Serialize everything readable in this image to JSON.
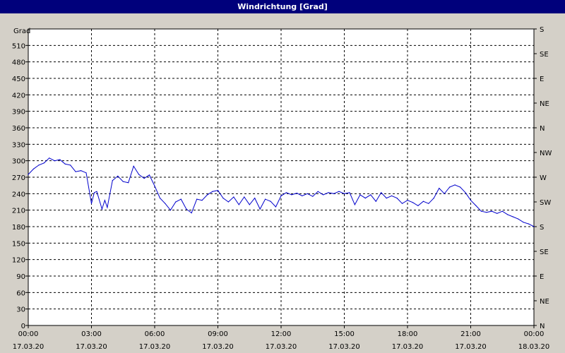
{
  "window": {
    "title": "Windrichtung [Grad]"
  },
  "colors": {
    "titlebar": "#00007b",
    "line": "#0000cc",
    "background": "#d4d0c8",
    "plot": "#ffffff"
  },
  "chart_data": {
    "type": "line",
    "title": "Windrichtung [Grad]",
    "ylabel": "Grad",
    "xlabel": "",
    "grid": true,
    "ylim": [
      0,
      540
    ],
    "yticks": [
      0,
      30,
      60,
      90,
      120,
      150,
      180,
      210,
      240,
      270,
      300,
      330,
      360,
      390,
      420,
      450,
      480,
      510
    ],
    "y2ticks": [
      "N",
      "NE",
      "E",
      "SE",
      "S",
      "SW",
      "W",
      "NW",
      "N",
      "NE",
      "E",
      "SE",
      "S"
    ],
    "xlim": [
      "17.03.20 00:00",
      "18.03.20 00:00"
    ],
    "xticks": [
      {
        "time": "00:00",
        "date": "17.03.20"
      },
      {
        "time": "03:00",
        "date": "17.03.20"
      },
      {
        "time": "06:00",
        "date": "17.03.20"
      },
      {
        "time": "09:00",
        "date": "17.03.20"
      },
      {
        "time": "12:00",
        "date": "17.03.20"
      },
      {
        "time": "15:00",
        "date": "17.03.20"
      },
      {
        "time": "18:00",
        "date": "17.03.20"
      },
      {
        "time": "21:00",
        "date": "17.03.20"
      },
      {
        "time": "00:00",
        "date": "18.03.20"
      }
    ],
    "series": [
      {
        "x": [
          "00:00",
          "00:15",
          "00:30",
          "00:45",
          "01:00",
          "01:15",
          "01:30",
          "01:45",
          "02:00",
          "02:15",
          "02:30",
          "02:45",
          "03:00",
          "03:08",
          "03:15",
          "03:30",
          "03:38",
          "03:45",
          "04:00",
          "04:15",
          "04:30",
          "04:45",
          "05:00",
          "05:15",
          "05:30",
          "05:45",
          "06:00",
          "06:15",
          "06:30",
          "06:45",
          "07:00",
          "07:15",
          "07:30",
          "07:45",
          "08:00",
          "08:15",
          "08:30",
          "08:45",
          "09:00",
          "09:15",
          "09:30",
          "09:45",
          "10:00",
          "10:15",
          "10:30",
          "10:45",
          "11:00",
          "11:15",
          "11:30",
          "11:45",
          "12:00",
          "12:15",
          "12:30",
          "12:45",
          "13:00",
          "13:15",
          "13:30",
          "13:45",
          "14:00",
          "14:15",
          "14:30",
          "14:45",
          "15:00",
          "15:15",
          "15:30",
          "15:45",
          "16:00",
          "16:15",
          "16:30",
          "16:45",
          "17:00",
          "17:15",
          "17:30",
          "17:45",
          "18:00",
          "18:15",
          "18:30",
          "18:45",
          "19:00",
          "19:15",
          "19:30",
          "19:45",
          "20:00",
          "20:15",
          "20:30",
          "20:45",
          "21:00",
          "21:15",
          "21:30",
          "21:45",
          "22:00",
          "22:15",
          "22:30",
          "22:45",
          "23:00",
          "23:15",
          "23:30",
          "23:45",
          "00:00"
        ],
        "y": [
          275,
          285,
          292,
          296,
          305,
          300,
          302,
          294,
          292,
          280,
          282,
          278,
          222,
          242,
          244,
          212,
          228,
          215,
          264,
          272,
          262,
          260,
          290,
          275,
          268,
          274,
          254,
          232,
          222,
          210,
          225,
          230,
          212,
          205,
          230,
          228,
          238,
          244,
          246,
          232,
          225,
          234,
          220,
          234,
          220,
          232,
          212,
          230,
          226,
          216,
          236,
          242,
          238,
          241,
          236,
          240,
          235,
          244,
          238,
          242,
          240,
          244,
          240,
          242,
          220,
          238,
          232,
          238,
          226,
          242,
          232,
          236,
          232,
          222,
          228,
          224,
          218,
          226,
          222,
          232,
          250,
          240,
          252,
          256,
          252,
          242,
          228,
          218,
          208,
          206,
          208,
          204,
          208,
          202,
          198,
          194,
          188,
          185,
          180
        ]
      }
    ]
  }
}
